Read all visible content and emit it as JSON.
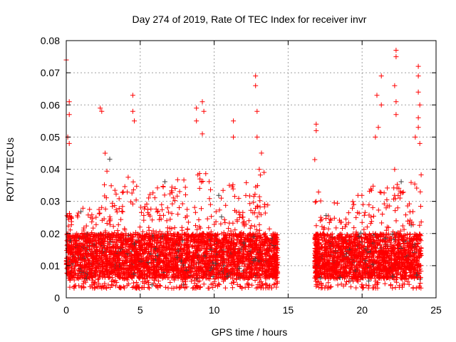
{
  "chart_data": {
    "type": "scatter",
    "title": "Day 274 of 2019, Rate Of TEC Index for receiver invr",
    "xlabel": "GPS time / hours",
    "ylabel": "ROTI / TECUs",
    "xlim": [
      0,
      25
    ],
    "ylim": [
      0,
      0.08
    ],
    "xticks": [
      "0",
      "5",
      "10",
      "15",
      "20",
      "25"
    ],
    "yticks": [
      "0",
      "0.01",
      "0.02",
      "0.03",
      "0.04",
      "0.05",
      "0.06",
      "0.07",
      "0.08"
    ],
    "grid": true,
    "marker": "plus",
    "colors": {
      "primary": "#ff0000",
      "secondary": "#404040"
    },
    "bulk_lower": 0.003,
    "bulk_envelope": [
      [
        0,
        0.035
      ],
      [
        0.5,
        0.03
      ],
      [
        1,
        0.03
      ],
      [
        1.5,
        0.028
      ],
      [
        2,
        0.03
      ],
      [
        2.5,
        0.045
      ],
      [
        3,
        0.035
      ],
      [
        3.5,
        0.035
      ],
      [
        4,
        0.04
      ],
      [
        4.5,
        0.04
      ],
      [
        5,
        0.03
      ],
      [
        5.5,
        0.035
      ],
      [
        6,
        0.035
      ],
      [
        6.5,
        0.038
      ],
      [
        7,
        0.035
      ],
      [
        7.5,
        0.038
      ],
      [
        8,
        0.036
      ],
      [
        8.5,
        0.04
      ],
      [
        9,
        0.04
      ],
      [
        9.5,
        0.038
      ],
      [
        10,
        0.033
      ],
      [
        10.5,
        0.035
      ],
      [
        11,
        0.04
      ],
      [
        11.5,
        0.035
      ],
      [
        12,
        0.036
      ],
      [
        12.5,
        0.036
      ],
      [
        13,
        0.04
      ],
      [
        13.5,
        0.035
      ],
      [
        14,
        0.021
      ],
      [
        16.8,
        0.03
      ],
      [
        17,
        0.035
      ],
      [
        17.5,
        0.03
      ],
      [
        18,
        0.03
      ],
      [
        18.5,
        0.025
      ],
      [
        19,
        0.03
      ],
      [
        19.5,
        0.032
      ],
      [
        20,
        0.03
      ],
      [
        20.5,
        0.035
      ],
      [
        21,
        0.04
      ],
      [
        21.5,
        0.038
      ],
      [
        22,
        0.04
      ],
      [
        22.5,
        0.04
      ],
      [
        23,
        0.038
      ],
      [
        23.5,
        0.04
      ]
    ],
    "data_gap_hours": [
      14.3,
      16.8
    ],
    "outliers": [
      [
        0.0,
        0.074
      ],
      [
        0.2,
        0.061
      ],
      [
        0.2,
        0.057
      ],
      [
        0.1,
        0.05
      ],
      [
        0.2,
        0.048
      ],
      [
        2.3,
        0.059
      ],
      [
        2.4,
        0.058
      ],
      [
        4.5,
        0.063
      ],
      [
        4.5,
        0.058
      ],
      [
        4.6,
        0.055
      ],
      [
        8.8,
        0.059
      ],
      [
        8.8,
        0.055
      ],
      [
        9.2,
        0.061
      ],
      [
        9.3,
        0.058
      ],
      [
        9.2,
        0.051
      ],
      [
        11.3,
        0.055
      ],
      [
        11.3,
        0.05
      ],
      [
        12.8,
        0.069
      ],
      [
        12.8,
        0.066
      ],
      [
        12.9,
        0.058
      ],
      [
        12.9,
        0.05
      ],
      [
        13.2,
        0.045
      ],
      [
        16.9,
        0.054
      ],
      [
        16.9,
        0.052
      ],
      [
        16.8,
        0.043
      ],
      [
        21.0,
        0.063
      ],
      [
        21.1,
        0.053
      ],
      [
        20.9,
        0.05
      ],
      [
        21.3,
        0.069
      ],
      [
        21.3,
        0.06
      ],
      [
        22.3,
        0.077
      ],
      [
        22.3,
        0.075
      ],
      [
        22.2,
        0.066
      ],
      [
        22.3,
        0.061
      ],
      [
        22.3,
        0.057
      ],
      [
        23.8,
        0.072
      ],
      [
        23.8,
        0.069
      ],
      [
        23.8,
        0.064
      ],
      [
        23.9,
        0.06
      ],
      [
        23.8,
        0.056
      ],
      [
        23.6,
        0.05
      ],
      [
        23.8,
        0.053
      ],
      [
        23.9,
        0.048
      ]
    ]
  }
}
